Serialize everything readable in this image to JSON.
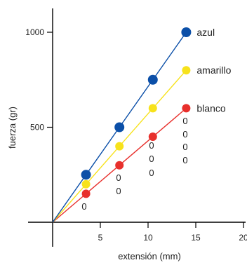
{
  "chart_data": {
    "type": "line",
    "xlabel": "extensión (mm)",
    "ylabel": "fuerza (gr)",
    "xlim": [
      0,
      20
    ],
    "ylim": [
      0,
      1100
    ],
    "x_ticks": [
      5,
      10,
      15,
      20
    ],
    "y_ticks": [
      500,
      1000
    ],
    "x_tick_labels": [
      "5",
      "10",
      "15",
      "20"
    ],
    "y_tick_labels": [
      "500",
      "1000"
    ],
    "grid": false,
    "legend": "direct labels at line ends",
    "series": [
      {
        "name": "azul",
        "color": "#0b4fa8",
        "x": [
          0,
          3.5,
          7,
          10.5,
          14
        ],
        "y": [
          0,
          250,
          500,
          750,
          1000
        ]
      },
      {
        "name": "amarillo",
        "color": "#f7e21b",
        "x": [
          0,
          3.5,
          7,
          10.5,
          14
        ],
        "y": [
          0,
          200,
          400,
          600,
          800
        ]
      },
      {
        "name": "blanco",
        "color": "#e8302c",
        "x": [
          0,
          3.5,
          7,
          10.5,
          14
        ],
        "y": [
          0,
          150,
          300,
          450,
          600
        ]
      }
    ],
    "zero_annotations": [
      "0",
      "0",
      "0",
      "0",
      "0",
      "0",
      "0",
      "0",
      "0",
      "0"
    ]
  }
}
